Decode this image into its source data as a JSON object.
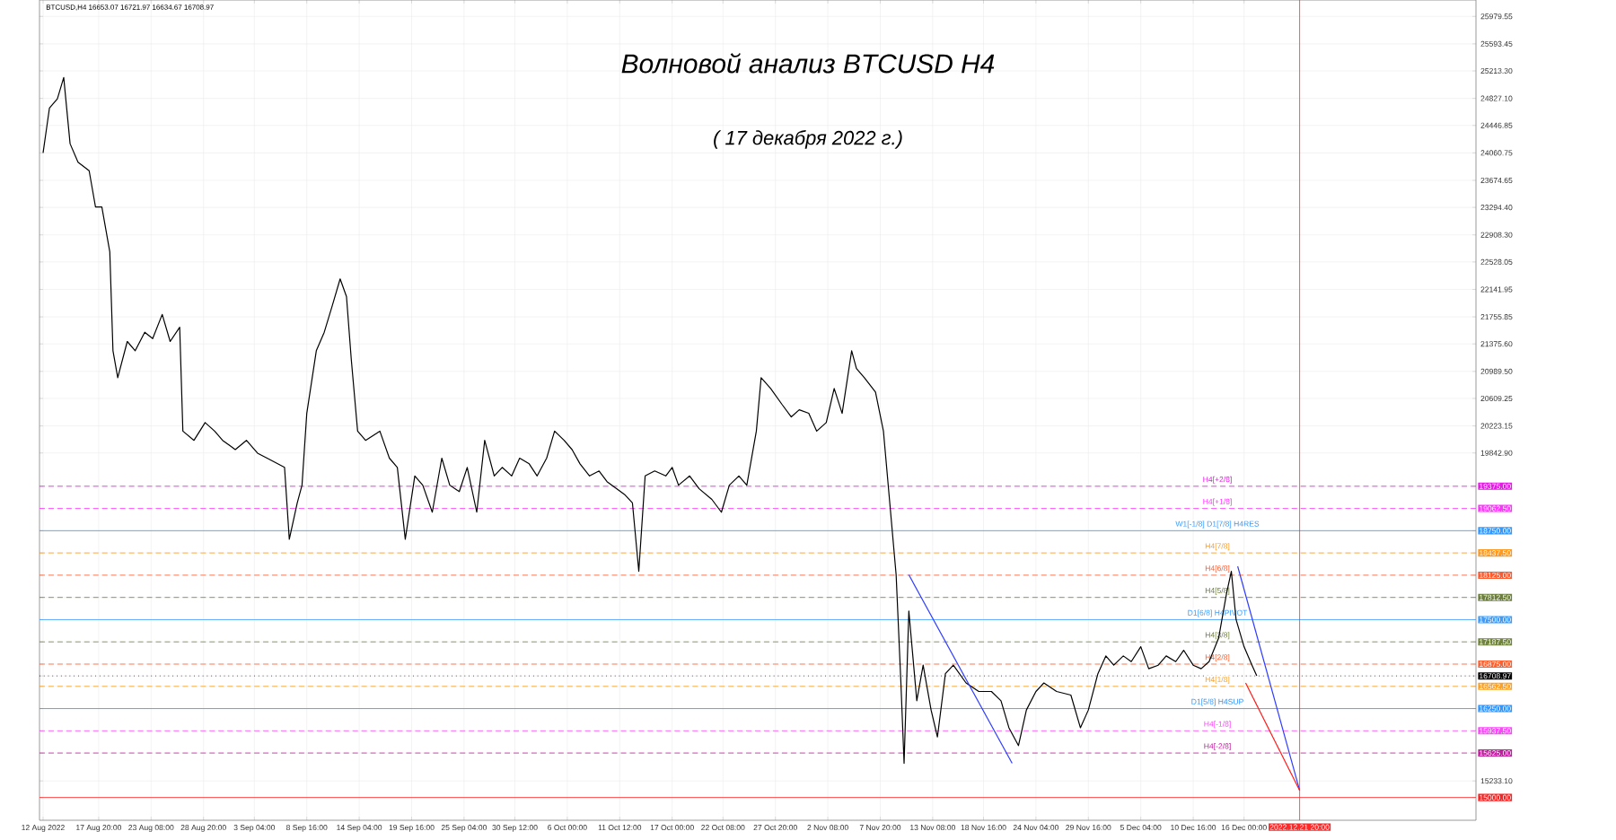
{
  "chart_data": {
    "type": "line",
    "title": "Волновой анализ BTCUSD H4",
    "subtitle": "( 17 декабря 2022 г.)",
    "annotations": [
      "BTCUSD,H4  16653.07 16721.97 16634.67 16708.97"
    ],
    "xlim": [
      "2022-08-11T15:00",
      "2023-01-09T08:00"
    ],
    "ylim": [
      14680,
      26210
    ],
    "grid": true,
    "x": [
      "2022-08-12T00:00",
      "2022-08-12T16:00",
      "2022-08-13T12:00",
      "2022-08-14T04:00",
      "2022-08-14T20:00",
      "2022-08-15T16:00",
      "2022-08-16T20:00",
      "2022-08-17T12:00",
      "2022-08-18T04:00",
      "2022-08-19T00:00",
      "2022-08-19T08:00",
      "2022-08-19T20:00",
      "2022-08-20T20:00",
      "2022-08-21T16:00",
      "2022-08-22T16:00",
      "2022-08-23T12:00",
      "2022-08-24T12:00",
      "2022-08-25T08:00",
      "2022-08-26T08:00",
      "2022-08-26T16:00",
      "2022-08-27T20:00",
      "2022-08-29T00:00",
      "2022-08-30T00:00",
      "2022-08-30T20:00",
      "2022-09-01T04:00",
      "2022-09-02T08:00",
      "2022-09-03T12:00",
      "2022-09-04T12:00",
      "2022-09-06T08:00",
      "2022-09-06T20:00",
      "2022-09-07T16:00",
      "2022-09-08T04:00",
      "2022-09-08T16:00",
      "2022-09-09T16:00",
      "2022-09-10T12:00",
      "2022-09-11T08:00",
      "2022-09-12T04:00",
      "2022-09-12T20:00",
      "2022-09-13T08:00",
      "2022-09-14T00:00",
      "2022-09-14T20:00",
      "2022-09-16T08:00",
      "2022-09-17T08:00",
      "2022-09-18T04:00",
      "2022-09-19T00:00",
      "2022-09-20T00:00",
      "2022-09-20T20:00",
      "2022-09-21T20:00",
      "2022-09-22T20:00",
      "2022-09-23T16:00",
      "2022-09-24T16:00",
      "2022-09-25T12:00",
      "2022-09-26T12:00",
      "2022-09-27T08:00",
      "2022-09-28T08:00",
      "2022-09-29T04:00",
      "2022-09-30T04:00",
      "2022-10-01T00:00",
      "2022-10-02T00:00",
      "2022-10-02T20:00",
      "2022-10-03T20:00",
      "2022-10-04T16:00",
      "2022-10-05T16:00",
      "2022-10-06T12:00",
      "2022-10-07T08:00",
      "2022-10-08T08:00",
      "2022-10-09T08:00",
      "2022-10-10T04:00",
      "2022-10-11T04:00",
      "2022-10-12T00:00",
      "2022-10-12T20:00",
      "2022-10-13T12:00",
      "2022-10-14T04:00",
      "2022-10-15T04:00",
      "2022-10-16T08:00",
      "2022-10-17T00:00",
      "2022-10-17T16:00",
      "2022-10-18T20:00",
      "2022-10-19T20:00",
      "2022-10-21T04:00",
      "2022-10-22T04:00",
      "2022-10-23T00:00",
      "2022-10-24T00:00",
      "2022-10-24T20:00",
      "2022-10-25T20:00",
      "2022-10-26T08:00",
      "2022-10-27T08:00",
      "2022-10-28T12:00",
      "2022-10-29T12:00",
      "2022-10-30T08:00",
      "2022-10-31T08:00",
      "2022-11-01T04:00",
      "2022-11-02T04:00",
      "2022-11-03T00:00",
      "2022-11-03T20:00",
      "2022-11-04T20:00",
      "2022-11-05T08:00",
      "2022-11-06T04:00",
      "2022-11-07T08:00",
      "2022-11-08T04:00",
      "2022-11-08T20:00",
      "2022-11-09T12:00",
      "2022-11-10T00:00",
      "2022-11-10T08:00",
      "2022-11-10T20:00",
      "2022-11-11T16:00",
      "2022-11-12T08:00",
      "2022-11-13T04:00",
      "2022-11-13T20:00",
      "2022-11-14T16:00",
      "2022-11-15T12:00",
      "2022-11-16T20:00",
      "2022-11-18T04:00",
      "2022-11-19T12:00",
      "2022-11-20T12:00",
      "2022-11-21T08:00",
      "2022-11-22T08:00",
      "2022-11-23T04:00",
      "2022-11-24T04:00",
      "2022-11-25T00:00",
      "2022-11-26T08:00",
      "2022-11-27T20:00",
      "2022-11-28T20:00",
      "2022-11-29T16:00",
      "2022-11-30T16:00",
      "2022-12-01T12:00",
      "2022-12-02T08:00",
      "2022-12-03T08:00",
      "2022-12-04T04:00",
      "2022-12-05T04:00",
      "2022-12-06T00:00",
      "2022-12-07T00:00",
      "2022-12-07T20:00",
      "2022-12-08T20:00",
      "2022-12-09T16:00",
      "2022-12-10T16:00",
      "2022-12-11T12:00",
      "2022-12-12T08:00",
      "2022-12-13T08:00",
      "2022-12-14T04:00",
      "2022-12-14T16:00",
      "2022-12-15T04:00",
      "2022-12-16T00:00",
      "2022-12-16T20:00",
      "2022-12-17T08:00"
    ],
    "series": [
      {
        "color": "#000000",
        "values": [
          24060,
          24690,
          24820,
          25120,
          24190,
          23930,
          23810,
          23300,
          23300,
          22670,
          21280,
          20900,
          21410,
          21280,
          21540,
          21450,
          21790,
          21410,
          21610,
          20150,
          20020,
          20270,
          20150,
          20020,
          19890,
          20020,
          19840,
          19770,
          19640,
          18630,
          19140,
          19390,
          20400,
          21280,
          21540,
          21910,
          22290,
          22040,
          21160,
          20150,
          20020,
          20150,
          19770,
          19640,
          18630,
          19520,
          19390,
          19010,
          19770,
          19390,
          19300,
          19640,
          19010,
          20020,
          19520,
          19640,
          19520,
          19770,
          19690,
          19520,
          19770,
          20150,
          20020,
          19890,
          19690,
          19520,
          19590,
          19440,
          19340,
          19260,
          19140,
          18180,
          19520,
          19590,
          19520,
          19640,
          19390,
          19520,
          19340,
          19190,
          19010,
          19390,
          19520,
          19390,
          20150,
          20900,
          20750,
          20530,
          20350,
          20450,
          20400,
          20150,
          20270,
          20750,
          20400,
          21280,
          21030,
          20900,
          20700,
          20150,
          19140,
          18130,
          16610,
          15480,
          17620,
          16360,
          16860,
          16230,
          15850,
          16740,
          16860,
          16610,
          16490,
          16490,
          16360,
          15980,
          15730,
          16230,
          16490,
          16610,
          16490,
          16440,
          15980,
          16230,
          16740,
          16990,
          16860,
          16990,
          16910,
          17120,
          16810,
          16860,
          16990,
          16910,
          17070,
          16860,
          16810,
          16910,
          17240,
          17870,
          18180,
          17500,
          17120,
          16860,
          16710
        ]
      },
      {
        "color": "#2f3cff",
        "x": [
          "2022-11-10T20:00",
          "2022-11-21T16:00"
        ],
        "values": [
          18130,
          15480
        ]
      },
      {
        "color": "#2f3cff",
        "x": [
          "2022-12-15T08:00",
          "2022-12-21T20:00"
        ],
        "values": [
          18250,
          15100
        ]
      },
      {
        "color": "#ff1a1a",
        "x": [
          "2022-12-16T04:00",
          "2022-12-21T20:00"
        ],
        "values": [
          16610,
          15100
        ]
      }
    ],
    "xticks": [
      {
        "value": "2022-08-12T00:00",
        "label": "12 Aug 2022"
      },
      {
        "value": "2022-08-17T20:00",
        "label": "17 Aug 20:00"
      },
      {
        "value": "2022-08-23T08:00",
        "label": "23 Aug 08:00"
      },
      {
        "value": "2022-08-28T20:00",
        "label": "28 Aug 20:00"
      },
      {
        "value": "2022-09-03T04:00",
        "label": "3 Sep 04:00"
      },
      {
        "value": "2022-09-08T16:00",
        "label": "8 Sep 16:00"
      },
      {
        "value": "2022-09-14T04:00",
        "label": "14 Sep 04:00"
      },
      {
        "value": "2022-09-19T16:00",
        "label": "19 Sep 16:00"
      },
      {
        "value": "2022-09-25T04:00",
        "label": "25 Sep 04:00"
      },
      {
        "value": "2022-09-30T12:00",
        "label": "30 Sep 12:00"
      },
      {
        "value": "2022-10-06T00:00",
        "label": "6 Oct 00:00"
      },
      {
        "value": "2022-10-11T12:00",
        "label": "11 Oct 12:00"
      },
      {
        "value": "2022-10-17T00:00",
        "label": "17 Oct 00:00"
      },
      {
        "value": "2022-10-22T08:00",
        "label": "22 Oct 08:00"
      },
      {
        "value": "2022-10-27T20:00",
        "label": "27 Oct 20:00"
      },
      {
        "value": "2022-11-02T08:00",
        "label": "2 Nov 08:00"
      },
      {
        "value": "2022-11-07T20:00",
        "label": "7 Nov 20:00"
      },
      {
        "value": "2022-11-13T08:00",
        "label": "13 Nov 08:00"
      },
      {
        "value": "2022-11-18T16:00",
        "label": "18 Nov 16:00"
      },
      {
        "value": "2022-11-24T04:00",
        "label": "24 Nov 04:00"
      },
      {
        "value": "2022-11-29T16:00",
        "label": "29 Nov 16:00"
      },
      {
        "value": "2022-12-05T04:00",
        "label": "5 Dec 04:00"
      },
      {
        "value": "2022-12-10T16:00",
        "label": "10 Dec 16:00"
      },
      {
        "value": "2022-12-16T00:00",
        "label": "16 Dec 00:00"
      }
    ],
    "yticks": [
      {
        "value": 25979.55,
        "label": "25979.55"
      },
      {
        "value": 25593.45,
        "label": "25593.45"
      },
      {
        "value": 25213.3,
        "label": "25213.30"
      },
      {
        "value": 24827.1,
        "label": "24827.10"
      },
      {
        "value": 24446.85,
        "label": "24446.85"
      },
      {
        "value": 24060.75,
        "label": "24060.75"
      },
      {
        "value": 23674.65,
        "label": "23674.65"
      },
      {
        "value": 23294.4,
        "label": "23294.40"
      },
      {
        "value": 22908.3,
        "label": "22908.30"
      },
      {
        "value": 22528.05,
        "label": "22528.05"
      },
      {
        "value": 22141.95,
        "label": "22141.95"
      },
      {
        "value": 21755.85,
        "label": "21755.85"
      },
      {
        "value": 21375.6,
        "label": "21375.60"
      },
      {
        "value": 20989.5,
        "label": "20989.50"
      },
      {
        "value": 20609.25,
        "label": "20609.25"
      },
      {
        "value": 20223.15,
        "label": "20223.15"
      },
      {
        "value": 19842.9,
        "label": "19842.90"
      },
      {
        "value": 15233.1,
        "label": "15233.10"
      },
      {
        "value": 19375,
        "label": "19375.00"
      },
      {
        "value": 19062.5,
        "label": "19062.50"
      },
      {
        "value": 18750,
        "label": "18750.00"
      },
      {
        "value": 18437.5,
        "label": "18437.50"
      },
      {
        "value": 18125,
        "label": "18125.00"
      },
      {
        "value": 17812.5,
        "label": "17812.50"
      },
      {
        "value": 17500,
        "label": "17500.00"
      },
      {
        "value": 17187.5,
        "label": "17187.50"
      },
      {
        "value": 16875,
        "label": "16875.00"
      },
      {
        "value": 16708.97,
        "label": "16708.97"
      },
      {
        "value": 16562.5,
        "label": "16562.50"
      },
      {
        "value": 16250,
        "label": "16250.00"
      },
      {
        "value": 15937.5,
        "label": "15937.50"
      },
      {
        "value": 15625,
        "label": "15625.00"
      },
      {
        "value": 15000,
        "label": "15000.00"
      }
    ],
    "ref_lines": [
      {
        "axis": "y",
        "value": 19375,
        "label": "H4[+2/8]",
        "color": "#e619e6",
        "line_style": "dashed"
      },
      {
        "axis": "y",
        "value": 19062.5,
        "label": "H4[+1/8]",
        "color": "#ff33ff",
        "line_style": "dashed"
      },
      {
        "axis": "y",
        "value": 18750,
        "label": "W1[-1/8] D1[7/8] H4RES",
        "color": "#3399ff",
        "line_style": "solid"
      },
      {
        "axis": "y",
        "value": 18437.5,
        "label": "H4[7/8]",
        "color": "#ff9a1f",
        "line_style": "dashed"
      },
      {
        "axis": "y",
        "value": 18125,
        "label": "H4[6/8]",
        "color": "#ff5a2e",
        "line_style": "dashed"
      },
      {
        "axis": "y",
        "value": 17812.5,
        "label": "H4[5/8]",
        "color": "#6b7f3a",
        "line_style": "dashed"
      },
      {
        "axis": "y",
        "value": 17500,
        "label": "D1[6/8] H4PIVOT",
        "color": "#3a9cff",
        "line_style": "solid"
      },
      {
        "axis": "y",
        "value": 17187.5,
        "label": "H4[3/8]",
        "color": "#70843c",
        "line_style": "dashed"
      },
      {
        "axis": "y",
        "value": 16875,
        "label": "H4[2/8]",
        "color": "#ff6030",
        "line_style": "dashed"
      },
      {
        "axis": "y",
        "value": 16708.97,
        "color": "#000000",
        "line_style": "dotted"
      },
      {
        "axis": "y",
        "value": 16562.5,
        "label": "H4[1/8]",
        "color": "#ffa020",
        "line_style": "dashed"
      },
      {
        "axis": "y",
        "value": 16250,
        "label": "D1[5/8] H4SUP",
        "color": "#2f95ff",
        "line_style": "solid"
      },
      {
        "axis": "y",
        "value": 15937.5,
        "label": "H4[-1/8]",
        "color": "#ff44ff",
        "line_style": "dashed"
      },
      {
        "axis": "y",
        "value": 15625,
        "label": "H4[-2/8]",
        "color": "#c21fa0",
        "line_style": "dashed"
      },
      {
        "axis": "y",
        "value": 15000,
        "color": "#ff2020",
        "line_style": "solid"
      },
      {
        "axis": "x",
        "value": "2022-12-21T20:00",
        "label": "2022.12.21 20:00",
        "color": "#ff2828",
        "line_style": "solid"
      }
    ]
  }
}
